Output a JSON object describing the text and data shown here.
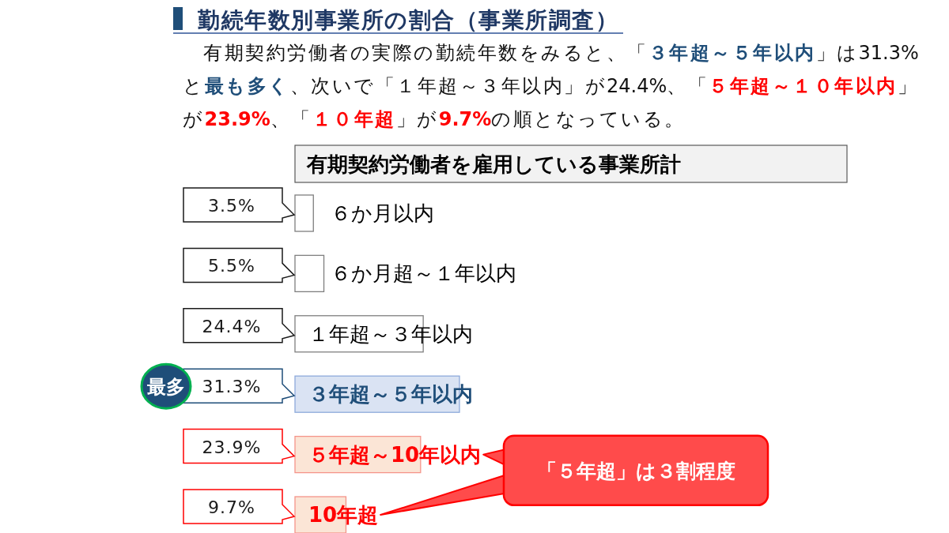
{
  "chart_data": {
    "type": "bar",
    "orientation": "horizontal",
    "title": "勤続年数別事業所の割合（事業所調査）",
    "subtitle": "有期契約労働者の実際の勤続年数をみると、「**３年超～５年以内**」は31.3%と**最も多く**、次いで「１年超～３年以内」が24.4%、「**５年超～１０年以内**」が**23.9%**、「**１０年超**」が**9.7%**の順となっている。",
    "categories": [
      "６か月以内",
      "６か月超～１年以内",
      "１年超～３年以内",
      "３年超～５年以内",
      "５年超～10年以内",
      "10年超"
    ],
    "values": [
      3.5,
      5.5,
      24.4,
      31.3,
      23.9,
      9.7
    ],
    "colors": [
      "#ffffff",
      "#ffffff",
      "#ffffff",
      "#dae3f3",
      "#fbe5d6",
      "#fbe5d6"
    ],
    "value_labels": [
      "3.5%",
      "5.5%",
      "24.4%",
      "31.3%",
      "23.9%",
      "9.7%"
    ],
    "annotations": [
      "有期契約労働者を雇用している事業所計",
      "最多",
      "「５年超」は３割程度"
    ]
  }
}
